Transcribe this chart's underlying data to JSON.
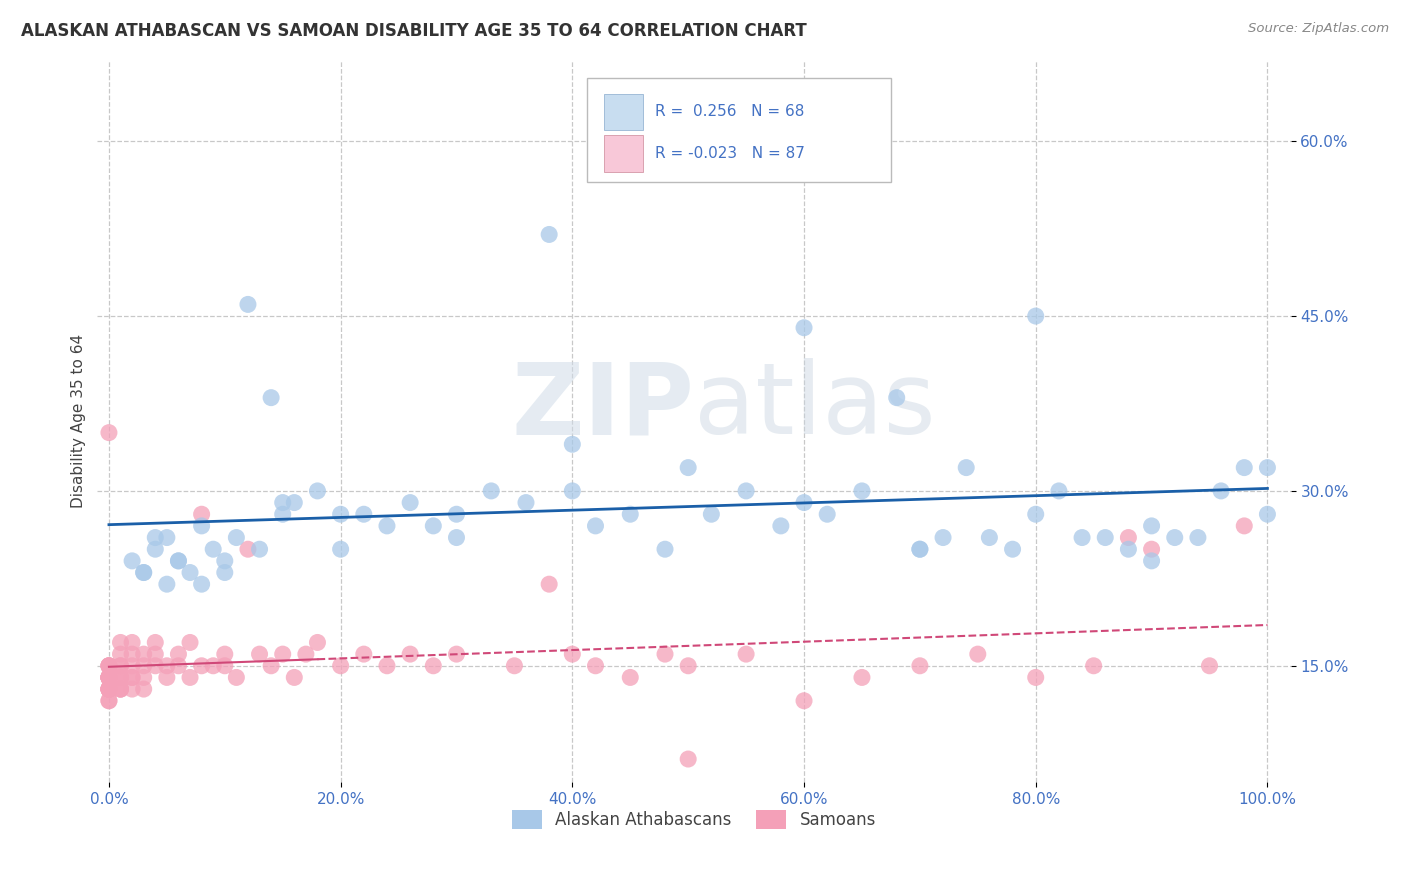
{
  "title": "ALASKAN ATHABASCAN VS SAMOAN DISABILITY AGE 35 TO 64 CORRELATION CHART",
  "source": "Source: ZipAtlas.com",
  "ylabel": "Disability Age 35 to 64",
  "xlim": [
    -0.01,
    1.02
  ],
  "ylim": [
    0.05,
    0.67
  ],
  "xticks": [
    0.0,
    0.2,
    0.4,
    0.6,
    0.8,
    1.0
  ],
  "xticklabels": [
    "0.0%",
    "20.0%",
    "40.0%",
    "60.0%",
    "80.0%",
    "100.0%"
  ],
  "yticks": [
    0.15,
    0.3,
    0.45,
    0.6
  ],
  "yticklabels": [
    "15.0%",
    "30.0%",
    "45.0%",
    "60.0%"
  ],
  "grid_color": "#c8c8c8",
  "background_color": "#ffffff",
  "blue_color": "#a8c8e8",
  "pink_color": "#f4a0b8",
  "blue_line_color": "#1a5fa8",
  "pink_line_color": "#d04878",
  "legend_box_blue": "#c8ddf0",
  "legend_box_pink": "#f8c8d8",
  "athabascan_x": [
    0.02,
    0.03,
    0.04,
    0.05,
    0.05,
    0.06,
    0.07,
    0.08,
    0.09,
    0.1,
    0.11,
    0.12,
    0.13,
    0.14,
    0.15,
    0.16,
    0.18,
    0.2,
    0.22,
    0.24,
    0.26,
    0.28,
    0.3,
    0.33,
    0.36,
    0.38,
    0.4,
    0.42,
    0.45,
    0.48,
    0.5,
    0.52,
    0.55,
    0.58,
    0.6,
    0.62,
    0.65,
    0.68,
    0.7,
    0.72,
    0.74,
    0.76,
    0.78,
    0.8,
    0.82,
    0.84,
    0.86,
    0.88,
    0.9,
    0.92,
    0.94,
    0.96,
    0.98,
    1.0,
    0.03,
    0.04,
    0.06,
    0.08,
    0.1,
    0.15,
    0.2,
    0.3,
    0.4,
    0.6,
    0.7,
    0.8,
    0.9,
    1.0
  ],
  "athabascan_y": [
    0.24,
    0.23,
    0.25,
    0.22,
    0.26,
    0.24,
    0.23,
    0.27,
    0.25,
    0.24,
    0.26,
    0.46,
    0.25,
    0.38,
    0.28,
    0.29,
    0.3,
    0.25,
    0.28,
    0.27,
    0.29,
    0.27,
    0.28,
    0.3,
    0.29,
    0.52,
    0.34,
    0.27,
    0.28,
    0.25,
    0.32,
    0.28,
    0.3,
    0.27,
    0.29,
    0.28,
    0.3,
    0.38,
    0.25,
    0.26,
    0.32,
    0.26,
    0.25,
    0.28,
    0.3,
    0.26,
    0.26,
    0.25,
    0.27,
    0.26,
    0.26,
    0.3,
    0.32,
    0.28,
    0.23,
    0.26,
    0.24,
    0.22,
    0.23,
    0.29,
    0.28,
    0.26,
    0.3,
    0.44,
    0.25,
    0.45,
    0.24,
    0.32
  ],
  "samoan_x": [
    0.0,
    0.0,
    0.0,
    0.0,
    0.0,
    0.0,
    0.0,
    0.0,
    0.0,
    0.0,
    0.0,
    0.0,
    0.0,
    0.0,
    0.0,
    0.0,
    0.0,
    0.0,
    0.0,
    0.0,
    0.01,
    0.01,
    0.01,
    0.01,
    0.01,
    0.01,
    0.01,
    0.01,
    0.01,
    0.01,
    0.02,
    0.02,
    0.02,
    0.02,
    0.02,
    0.02,
    0.03,
    0.03,
    0.03,
    0.03,
    0.04,
    0.04,
    0.04,
    0.05,
    0.05,
    0.06,
    0.06,
    0.07,
    0.07,
    0.08,
    0.08,
    0.09,
    0.1,
    0.1,
    0.11,
    0.12,
    0.13,
    0.14,
    0.15,
    0.16,
    0.17,
    0.18,
    0.2,
    0.22,
    0.24,
    0.26,
    0.28,
    0.3,
    0.35,
    0.38,
    0.4,
    0.42,
    0.45,
    0.48,
    0.5,
    0.55,
    0.6,
    0.65,
    0.7,
    0.75,
    0.8,
    0.85,
    0.88,
    0.9,
    0.95,
    0.98,
    0.5
  ],
  "samoan_y": [
    0.13,
    0.14,
    0.12,
    0.15,
    0.13,
    0.14,
    0.15,
    0.13,
    0.14,
    0.15,
    0.13,
    0.14,
    0.12,
    0.15,
    0.14,
    0.13,
    0.35,
    0.14,
    0.13,
    0.14,
    0.14,
    0.13,
    0.15,
    0.14,
    0.16,
    0.13,
    0.15,
    0.17,
    0.14,
    0.13,
    0.14,
    0.15,
    0.16,
    0.13,
    0.17,
    0.14,
    0.15,
    0.14,
    0.16,
    0.13,
    0.15,
    0.16,
    0.17,
    0.15,
    0.14,
    0.16,
    0.15,
    0.14,
    0.17,
    0.15,
    0.28,
    0.15,
    0.16,
    0.15,
    0.14,
    0.25,
    0.16,
    0.15,
    0.16,
    0.14,
    0.16,
    0.17,
    0.15,
    0.16,
    0.15,
    0.16,
    0.15,
    0.16,
    0.15,
    0.22,
    0.16,
    0.15,
    0.14,
    0.16,
    0.15,
    0.16,
    0.12,
    0.14,
    0.15,
    0.16,
    0.14,
    0.15,
    0.26,
    0.25,
    0.15,
    0.27,
    0.07
  ]
}
